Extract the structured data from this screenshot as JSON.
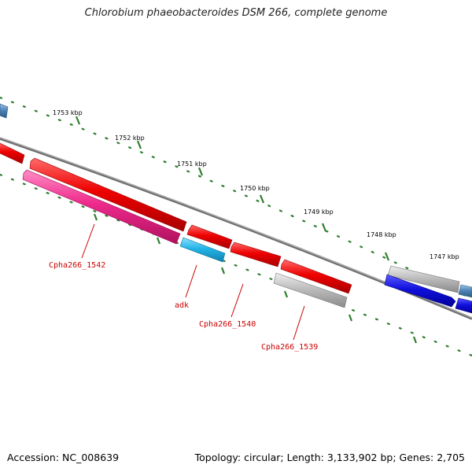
{
  "title": "Chlorobium phaeobacteroides DSM 266, complete genome",
  "footer": {
    "accession": "Accession: NC_008639",
    "summary": "Topology: circular; Length: 3,133,902 bp; Genes: 2,705"
  },
  "scale_labels": [
    "1753 kbp",
    "1752 kbp",
    "1751 kbp",
    "1750 kbp",
    "1749 kbp",
    "1748 kbp",
    "1747 kbp"
  ],
  "gene_labels": [
    "Cpha266_1542",
    "adk",
    "Cpha266_1540",
    "Cpha266_1539"
  ],
  "colors": {
    "backbone": "#7a7a7a",
    "scale_ticks": "#2e7d2e",
    "cds_red": "#ee0000",
    "cds_pink": "#ee2a8c",
    "cds_cyan": "#22b4e8",
    "cds_grey": "#bdbdbd",
    "cds_blue": "#1010dd",
    "cds_steel": "#4f86b8",
    "label_red": "#cc0000"
  }
}
